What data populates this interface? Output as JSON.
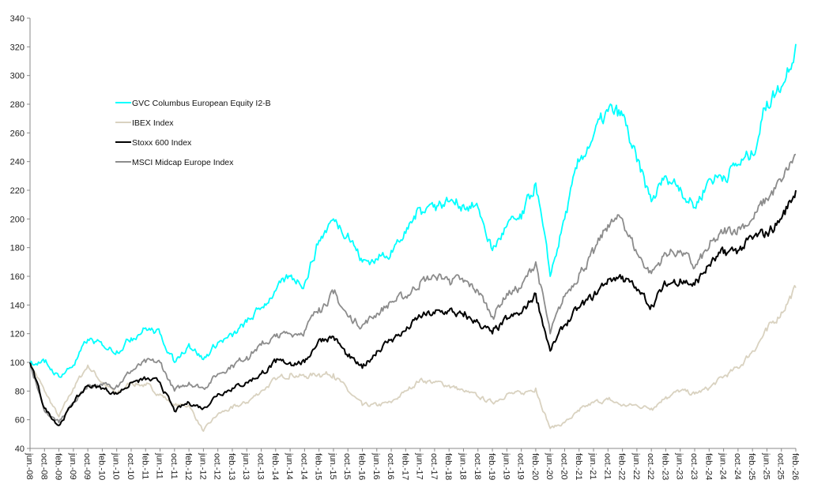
{
  "chart_data": {
    "type": "line",
    "title": "",
    "xlabel": "",
    "ylabel": "",
    "ylim": [
      40,
      340
    ],
    "yticks": [
      40,
      60,
      80,
      100,
      120,
      140,
      160,
      180,
      200,
      220,
      240,
      260,
      280,
      300,
      320,
      340
    ],
    "grid": false,
    "legend_position": "top-left",
    "categories": [
      "jun.-08",
      "oct.-08",
      "feb.-09",
      "jun.-09",
      "oct.-09",
      "feb.-10",
      "jun.-10",
      "oct.-10",
      "feb.-11",
      "jun.-11",
      "oct.-11",
      "feb.-12",
      "jun.-12",
      "oct.-12",
      "feb.-13",
      "jun.-13",
      "oct.-13",
      "feb.-14",
      "jun.-14",
      "oct.-14",
      "feb.-15",
      "jun.-15",
      "oct.-15",
      "feb.-16",
      "jun.-16",
      "oct.-16",
      "feb.-17",
      "jun.-17",
      "oct.-17",
      "feb.-18",
      "jun.-18",
      "oct.-18",
      "feb.-19",
      "jun.-19",
      "oct.-19",
      "feb.-20",
      "jun.-20",
      "oct.-20",
      "feb.-21",
      "jun.-21",
      "oct.-21",
      "feb.-22",
      "jun.-22",
      "oct.-22",
      "feb.-23",
      "jun.-23",
      "oct.-23",
      "feb.-24",
      "jun.-24",
      "oct.-24",
      "feb.-25",
      "jun.-25",
      "oct.-25",
      "feb.-26"
    ],
    "series": [
      {
        "name": "GVC Columbus European Equity I2-B",
        "color": "#00FFFF",
        "values": [
          100,
          100,
          90,
          98,
          116,
          112,
          108,
          117,
          124,
          120,
          100,
          113,
          102,
          114,
          118,
          128,
          138,
          150,
          160,
          155,
          185,
          200,
          190,
          170,
          172,
          178,
          190,
          208,
          210,
          212,
          210,
          208,
          178,
          195,
          200,
          225,
          160,
          200,
          240,
          258,
          275,
          272,
          240,
          212,
          230,
          222,
          208,
          228,
          230,
          238,
          245,
          282,
          292,
          322
        ]
      },
      {
        "name": "IBEX Index",
        "color": "#D9D2C0",
        "values": [
          100,
          80,
          62,
          82,
          98,
          86,
          78,
          86,
          84,
          78,
          70,
          70,
          52,
          64,
          68,
          72,
          80,
          88,
          92,
          90,
          92,
          92,
          80,
          70,
          70,
          72,
          80,
          88,
          86,
          84,
          80,
          76,
          72,
          78,
          78,
          82,
          54,
          58,
          66,
          72,
          74,
          70,
          70,
          68,
          76,
          80,
          78,
          82,
          90,
          96,
          108,
          122,
          135,
          152
        ]
      },
      {
        "name": "Stoxx 600 Index",
        "color": "#000000",
        "values": [
          100,
          68,
          56,
          72,
          84,
          82,
          78,
          86,
          88,
          86,
          66,
          72,
          68,
          78,
          82,
          86,
          92,
          100,
          100,
          100,
          116,
          118,
          104,
          96,
          108,
          116,
          122,
          132,
          134,
          136,
          132,
          128,
          120,
          130,
          134,
          148,
          108,
          126,
          138,
          146,
          158,
          160,
          150,
          140,
          154,
          158,
          154,
          168,
          176,
          178,
          186,
          190,
          200,
          220
        ]
      },
      {
        "name": "MSCI Midcap Europe Index",
        "color": "#8C8C8C",
        "values": [
          100,
          66,
          58,
          72,
          84,
          84,
          84,
          94,
          100,
          100,
          80,
          86,
          82,
          92,
          98,
          104,
          112,
          118,
          120,
          122,
          138,
          148,
          132,
          126,
          134,
          142,
          146,
          156,
          160,
          158,
          156,
          150,
          132,
          148,
          152,
          170,
          120,
          146,
          162,
          176,
          196,
          200,
          176,
          162,
          176,
          178,
          166,
          180,
          190,
          194,
          200,
          214,
          226,
          245
        ]
      }
    ]
  }
}
